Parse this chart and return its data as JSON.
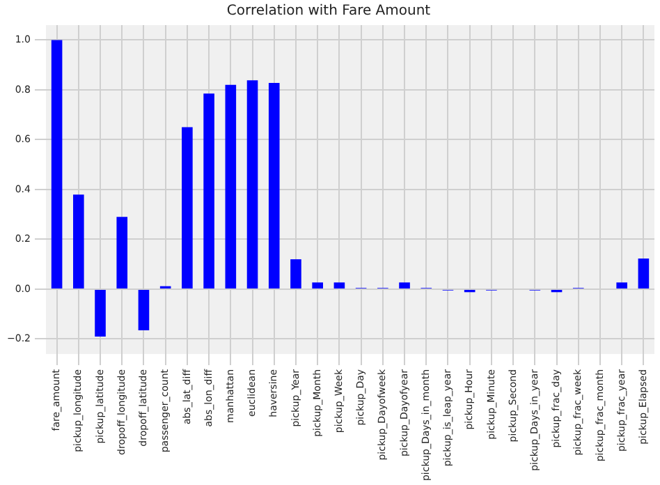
{
  "chart_data": {
    "type": "bar",
    "title": "Correlation with Fare Amount",
    "categories": [
      "fare_amount",
      "pickup_longitude",
      "pickup_latitude",
      "dropoff_longitude",
      "dropoff_latitude",
      "passenger_count",
      "abs_lat_diff",
      "abs_lon_diff",
      "manhattan",
      "euclidean",
      "haversine",
      "pickup_Year",
      "pickup_Month",
      "pickup_Week",
      "pickup_Day",
      "pickup_Dayofweek",
      "pickup_Dayofyear",
      "pickup_Days_in_month",
      "pickup_is_leap_year",
      "pickup_Hour",
      "pickup_Minute",
      "pickup_Second",
      "pickup_Days_in_year",
      "pickup_frac_day",
      "pickup_frac_week",
      "pickup_frac_month",
      "pickup_frac_year",
      "pickup_Elapsed"
    ],
    "values": [
      1.0,
      0.38,
      -0.19,
      0.29,
      -0.165,
      0.012,
      0.65,
      0.785,
      0.82,
      0.838,
      0.828,
      0.12,
      0.027,
      0.027,
      0.005,
      0.005,
      0.027,
      0.005,
      -0.005,
      -0.012,
      -0.005,
      0,
      -0.005,
      -0.012,
      0.005,
      0,
      0.027,
      0.123
    ],
    "color": "#0000ff",
    "ylim": [
      -0.26,
      1.06
    ],
    "yticks": [
      {
        "value": -0.2,
        "label": "−0.2"
      },
      {
        "value": 0,
        "label": "0.0"
      },
      {
        "value": 0.2,
        "label": "0.2"
      },
      {
        "value": 0.4,
        "label": "0.4"
      },
      {
        "value": 0.6,
        "label": "0.6"
      },
      {
        "value": 0.8,
        "label": "0.8"
      },
      {
        "value": 1.0,
        "label": "1.0"
      }
    ],
    "grid": true
  }
}
